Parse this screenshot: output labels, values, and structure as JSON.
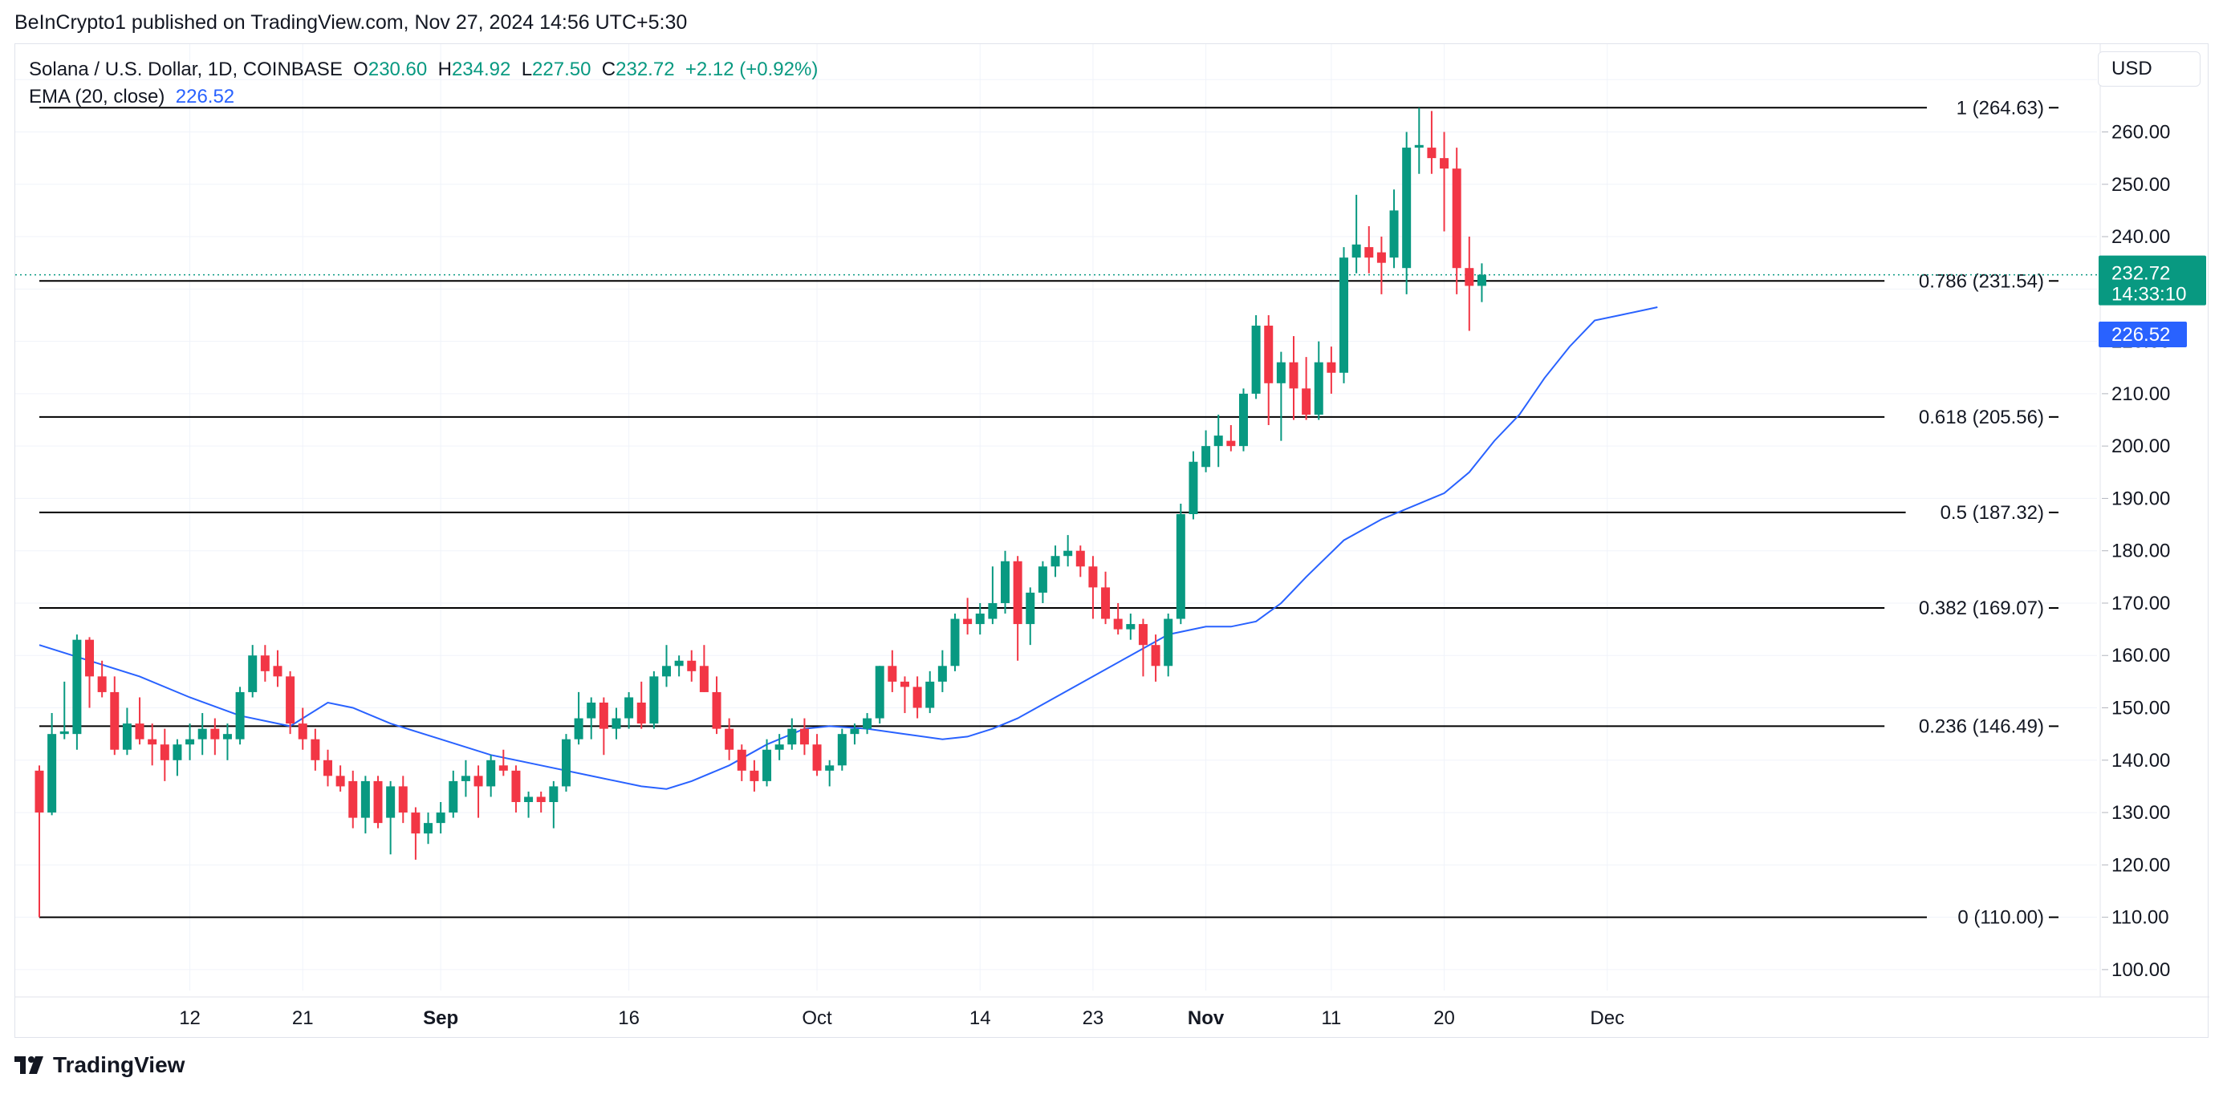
{
  "header": {
    "publisher": "BeInCrypto1 published on TradingView.com, Nov 27, 2024 14:56 UTC+5:30"
  },
  "legend": {
    "symbol": "Solana / U.S. Dollar, 1D, COINBASE",
    "o_label": "O",
    "o_value": "230.60",
    "h_label": "H",
    "h_value": "234.92",
    "l_label": "L",
    "l_value": "227.50",
    "c_label": "C",
    "c_value": "232.72",
    "change": "+2.12 (+0.92%)",
    "ema_label": "EMA (20, close)",
    "ema_value": "226.52"
  },
  "toolbar": {
    "currency": "USD"
  },
  "brand": {
    "name": "TradingView"
  },
  "colors": {
    "up": "#089981",
    "down": "#f23645",
    "ema": "#2962ff",
    "fib": "#000000",
    "grid": "#f0f3fa"
  },
  "price_badge": {
    "price": "232.72",
    "countdown": "14:33:10"
  },
  "ema_badge": {
    "value": "226.52"
  },
  "chart_data": {
    "type": "candlestick",
    "y_axis": {
      "range": [
        96,
        278
      ],
      "ticks": [
        100,
        110,
        120,
        130,
        140,
        150,
        160,
        170,
        180,
        190,
        200,
        210,
        220,
        230,
        240,
        250,
        260,
        270
      ],
      "tick_labels": [
        "100.00",
        "110.00",
        "120.00",
        "130.00",
        "140.00",
        "150.00",
        "160.00",
        "170.00",
        "180.00",
        "190.00",
        "200.00",
        "210.00",
        "220.00",
        "",
        "240.00",
        "250.00",
        "260.00",
        "270.00"
      ]
    },
    "x_axis": {
      "ticks": [
        {
          "day": 12,
          "label": "12",
          "bold": false
        },
        {
          "day": 21,
          "label": "21",
          "bold": false
        },
        {
          "day": 32,
          "label": "Sep",
          "bold": true
        },
        {
          "day": 47,
          "label": "16",
          "bold": false
        },
        {
          "day": 62,
          "label": "Oct",
          "bold": false
        },
        {
          "day": 75,
          "label": "14",
          "bold": false
        },
        {
          "day": 84,
          "label": "23",
          "bold": false
        },
        {
          "day": 93,
          "label": "Nov",
          "bold": true
        },
        {
          "day": 103,
          "label": "11",
          "bold": false
        },
        {
          "day": 112,
          "label": "20",
          "bold": false
        },
        {
          "day": 125,
          "label": "Dec",
          "bold": false
        }
      ]
    },
    "fib_levels": [
      {
        "ratio": "1",
        "price": 264.63,
        "label": "1 (264.63)"
      },
      {
        "ratio": "0.786",
        "price": 231.54,
        "label": "0.786 (231.54)"
      },
      {
        "ratio": "0.618",
        "price": 205.56,
        "label": "0.618 (205.56)"
      },
      {
        "ratio": "0.5",
        "price": 187.32,
        "label": "0.5 (187.32)"
      },
      {
        "ratio": "0.382",
        "price": 169.07,
        "label": "0.382 (169.07)"
      },
      {
        "ratio": "0.236",
        "price": 146.49,
        "label": "0.236 (146.49)"
      },
      {
        "ratio": "0",
        "price": 110.0,
        "label": "0 (110.00)"
      }
    ],
    "candles": [
      {
        "o": 138.0,
        "h": 139.0,
        "l": 110.0,
        "c": 130.0
      },
      {
        "o": 130.0,
        "h": 149.0,
        "l": 129.5,
        "c": 145.0
      },
      {
        "o": 145.0,
        "h": 155.0,
        "l": 144.0,
        "c": 145.5
      },
      {
        "o": 145.0,
        "h": 164.0,
        "l": 142.0,
        "c": 163.0
      },
      {
        "o": 163.0,
        "h": 163.5,
        "l": 150.0,
        "c": 156.0
      },
      {
        "o": 156.0,
        "h": 159.0,
        "l": 152.0,
        "c": 153.0
      },
      {
        "o": 153.0,
        "h": 156.0,
        "l": 141.0,
        "c": 142.0
      },
      {
        "o": 142.0,
        "h": 150.0,
        "l": 141.0,
        "c": 147.0
      },
      {
        "o": 147.0,
        "h": 152.0,
        "l": 143.0,
        "c": 144.0
      },
      {
        "o": 144.0,
        "h": 147.0,
        "l": 139.0,
        "c": 143.0
      },
      {
        "o": 143.0,
        "h": 146.0,
        "l": 136.0,
        "c": 140.0
      },
      {
        "o": 140.0,
        "h": 144.0,
        "l": 137.0,
        "c": 143.0
      },
      {
        "o": 143.0,
        "h": 147.0,
        "l": 140.0,
        "c": 144.0
      },
      {
        "o": 144.0,
        "h": 149.0,
        "l": 141.0,
        "c": 146.0
      },
      {
        "o": 146.0,
        "h": 148.0,
        "l": 141.0,
        "c": 144.0
      },
      {
        "o": 144.0,
        "h": 147.0,
        "l": 140.0,
        "c": 145.0
      },
      {
        "o": 144.0,
        "h": 154.0,
        "l": 143.0,
        "c": 153.0
      },
      {
        "o": 153.0,
        "h": 162.0,
        "l": 152.0,
        "c": 160.0
      },
      {
        "o": 160.0,
        "h": 162.0,
        "l": 155.0,
        "c": 157.0
      },
      {
        "o": 158.0,
        "h": 161.0,
        "l": 154.0,
        "c": 156.0
      },
      {
        "o": 156.0,
        "h": 157.0,
        "l": 145.0,
        "c": 147.0
      },
      {
        "o": 147.0,
        "h": 150.0,
        "l": 142.0,
        "c": 144.0
      },
      {
        "o": 144.0,
        "h": 146.0,
        "l": 138.0,
        "c": 140.0
      },
      {
        "o": 140.0,
        "h": 142.0,
        "l": 135.0,
        "c": 137.0
      },
      {
        "o": 137.0,
        "h": 139.0,
        "l": 134.0,
        "c": 135.0
      },
      {
        "o": 136.0,
        "h": 138.0,
        "l": 127.0,
        "c": 129.0
      },
      {
        "o": 129.0,
        "h": 137.0,
        "l": 126.0,
        "c": 136.0
      },
      {
        "o": 136.0,
        "h": 137.0,
        "l": 127.0,
        "c": 128.0
      },
      {
        "o": 129.0,
        "h": 136.0,
        "l": 122.0,
        "c": 135.0
      },
      {
        "o": 135.0,
        "h": 137.0,
        "l": 128.0,
        "c": 130.0
      },
      {
        "o": 130.0,
        "h": 131.0,
        "l": 121.0,
        "c": 126.0
      },
      {
        "o": 126.0,
        "h": 130.0,
        "l": 124.0,
        "c": 128.0
      },
      {
        "o": 128.0,
        "h": 132.0,
        "l": 126.0,
        "c": 130.0
      },
      {
        "o": 130.0,
        "h": 138.0,
        "l": 129.0,
        "c": 136.0
      },
      {
        "o": 136.0,
        "h": 140.0,
        "l": 133.0,
        "c": 137.0
      },
      {
        "o": 137.0,
        "h": 139.0,
        "l": 129.0,
        "c": 135.0
      },
      {
        "o": 135.0,
        "h": 141.0,
        "l": 133.0,
        "c": 140.0
      },
      {
        "o": 139.0,
        "h": 142.0,
        "l": 137.0,
        "c": 138.0
      },
      {
        "o": 138.0,
        "h": 139.0,
        "l": 130.0,
        "c": 132.0
      },
      {
        "o": 132.0,
        "h": 134.0,
        "l": 129.0,
        "c": 133.0
      },
      {
        "o": 133.0,
        "h": 134.0,
        "l": 130.0,
        "c": 132.0
      },
      {
        "o": 132.0,
        "h": 136.0,
        "l": 127.0,
        "c": 135.0
      },
      {
        "o": 135.0,
        "h": 145.0,
        "l": 134.0,
        "c": 144.0
      },
      {
        "o": 144.0,
        "h": 153.0,
        "l": 143.0,
        "c": 148.0
      },
      {
        "o": 148.0,
        "h": 152.0,
        "l": 144.0,
        "c": 151.0
      },
      {
        "o": 151.0,
        "h": 152.0,
        "l": 141.0,
        "c": 146.0
      },
      {
        "o": 146.0,
        "h": 150.0,
        "l": 144.0,
        "c": 148.0
      },
      {
        "o": 148.0,
        "h": 153.0,
        "l": 146.0,
        "c": 152.0
      },
      {
        "o": 151.0,
        "h": 155.0,
        "l": 146.0,
        "c": 147.0
      },
      {
        "o": 147.0,
        "h": 157.0,
        "l": 146.0,
        "c": 156.0
      },
      {
        "o": 156.0,
        "h": 162.0,
        "l": 154.0,
        "c": 158.0
      },
      {
        "o": 158.0,
        "h": 160.0,
        "l": 156.0,
        "c": 159.0
      },
      {
        "o": 159.0,
        "h": 161.0,
        "l": 155.0,
        "c": 157.0
      },
      {
        "o": 158.0,
        "h": 162.0,
        "l": 153.0,
        "c": 153.0
      },
      {
        "o": 153.0,
        "h": 156.0,
        "l": 145.0,
        "c": 146.0
      },
      {
        "o": 146.0,
        "h": 148.0,
        "l": 140.0,
        "c": 142.0
      },
      {
        "o": 142.0,
        "h": 143.0,
        "l": 136.0,
        "c": 138.0
      },
      {
        "o": 138.0,
        "h": 140.0,
        "l": 134.0,
        "c": 136.0
      },
      {
        "o": 136.0,
        "h": 144.0,
        "l": 135.0,
        "c": 142.0
      },
      {
        "o": 142.0,
        "h": 145.0,
        "l": 140.0,
        "c": 143.0
      },
      {
        "o": 143.0,
        "h": 148.0,
        "l": 142.0,
        "c": 146.0
      },
      {
        "o": 146.0,
        "h": 148.0,
        "l": 141.0,
        "c": 143.0
      },
      {
        "o": 143.0,
        "h": 145.0,
        "l": 137.0,
        "c": 138.0
      },
      {
        "o": 138.0,
        "h": 140.0,
        "l": 135.0,
        "c": 139.0
      },
      {
        "o": 139.0,
        "h": 146.0,
        "l": 138.0,
        "c": 145.0
      },
      {
        "o": 145.0,
        "h": 147.0,
        "l": 143.0,
        "c": 146.0
      },
      {
        "o": 146.0,
        "h": 149.0,
        "l": 145.0,
        "c": 148.0
      },
      {
        "o": 148.0,
        "h": 158.0,
        "l": 147.0,
        "c": 158.0
      },
      {
        "o": 158.0,
        "h": 161.0,
        "l": 153.0,
        "c": 155.0
      },
      {
        "o": 155.0,
        "h": 156.0,
        "l": 149.0,
        "c": 154.0
      },
      {
        "o": 154.0,
        "h": 156.0,
        "l": 148.0,
        "c": 150.0
      },
      {
        "o": 150.0,
        "h": 157.0,
        "l": 149.0,
        "c": 155.0
      },
      {
        "o": 155.0,
        "h": 161.0,
        "l": 153.0,
        "c": 158.0
      },
      {
        "o": 158.0,
        "h": 168.0,
        "l": 157.0,
        "c": 167.0
      },
      {
        "o": 167.0,
        "h": 171.0,
        "l": 164.0,
        "c": 166.0
      },
      {
        "o": 166.0,
        "h": 170.0,
        "l": 164.0,
        "c": 168.0
      },
      {
        "o": 167.0,
        "h": 177.0,
        "l": 166.0,
        "c": 170.0
      },
      {
        "o": 170.0,
        "h": 180.0,
        "l": 168.0,
        "c": 178.0
      },
      {
        "o": 178.0,
        "h": 179.0,
        "l": 159.0,
        "c": 166.0
      },
      {
        "o": 166.0,
        "h": 173.0,
        "l": 162.0,
        "c": 172.0
      },
      {
        "o": 172.0,
        "h": 178.0,
        "l": 170.0,
        "c": 177.0
      },
      {
        "o": 177.0,
        "h": 181.0,
        "l": 175.0,
        "c": 179.0
      },
      {
        "o": 179.0,
        "h": 183.0,
        "l": 177.0,
        "c": 180.0
      },
      {
        "o": 180.0,
        "h": 181.0,
        "l": 175.0,
        "c": 177.0
      },
      {
        "o": 177.0,
        "h": 179.0,
        "l": 167.0,
        "c": 173.0
      },
      {
        "o": 173.0,
        "h": 176.0,
        "l": 166.0,
        "c": 167.0
      },
      {
        "o": 167.0,
        "h": 170.0,
        "l": 164.0,
        "c": 165.0
      },
      {
        "o": 165.0,
        "h": 168.0,
        "l": 163.0,
        "c": 166.0
      },
      {
        "o": 166.0,
        "h": 167.0,
        "l": 156.0,
        "c": 162.0
      },
      {
        "o": 162.0,
        "h": 164.0,
        "l": 155.0,
        "c": 158.0
      },
      {
        "o": 158.0,
        "h": 168.0,
        "l": 156.0,
        "c": 167.0
      },
      {
        "o": 167.0,
        "h": 189.0,
        "l": 166.0,
        "c": 187.0
      },
      {
        "o": 187.0,
        "h": 199.0,
        "l": 186.0,
        "c": 197.0
      },
      {
        "o": 196.0,
        "h": 203.0,
        "l": 195.0,
        "c": 200.0
      },
      {
        "o": 200.0,
        "h": 206.0,
        "l": 196.0,
        "c": 202.0
      },
      {
        "o": 201.0,
        "h": 204.0,
        "l": 199.0,
        "c": 200.0
      },
      {
        "o": 200.0,
        "h": 211.0,
        "l": 199.0,
        "c": 210.0
      },
      {
        "o": 210.0,
        "h": 225.0,
        "l": 209.0,
        "c": 223.0
      },
      {
        "o": 223.0,
        "h": 225.0,
        "l": 204.0,
        "c": 212.0
      },
      {
        "o": 212.0,
        "h": 218.0,
        "l": 201.0,
        "c": 216.0
      },
      {
        "o": 216.0,
        "h": 221.0,
        "l": 205.0,
        "c": 211.0
      },
      {
        "o": 211.0,
        "h": 217.0,
        "l": 205.0,
        "c": 206.0
      },
      {
        "o": 206.0,
        "h": 220.0,
        "l": 205.0,
        "c": 216.0
      },
      {
        "o": 216.0,
        "h": 219.0,
        "l": 210.0,
        "c": 214.0
      },
      {
        "o": 214.0,
        "h": 238.0,
        "l": 212.0,
        "c": 236.0
      },
      {
        "o": 236.0,
        "h": 248.0,
        "l": 233.0,
        "c": 238.5
      },
      {
        "o": 238.0,
        "h": 242.0,
        "l": 233.0,
        "c": 236.0
      },
      {
        "o": 237.0,
        "h": 240.0,
        "l": 229.0,
        "c": 235.0
      },
      {
        "o": 236.0,
        "h": 249.0,
        "l": 234.0,
        "c": 245.0
      },
      {
        "o": 234.0,
        "h": 260.0,
        "l": 229.0,
        "c": 257.0
      },
      {
        "o": 257.0,
        "h": 264.6,
        "l": 252.0,
        "c": 257.5
      },
      {
        "o": 257.0,
        "h": 264.0,
        "l": 252.0,
        "c": 255.0
      },
      {
        "o": 255.0,
        "h": 260.0,
        "l": 241.0,
        "c": 253.0
      },
      {
        "o": 253.0,
        "h": 257.0,
        "l": 229.0,
        "c": 234.0
      },
      {
        "o": 234.0,
        "h": 240.0,
        "l": 222.0,
        "c": 230.6
      },
      {
        "o": 230.6,
        "h": 234.9,
        "l": 227.5,
        "c": 232.72
      }
    ],
    "ema20": [
      {
        "d": 0,
        "v": 162.0
      },
      {
        "d": 4,
        "v": 159.0
      },
      {
        "d": 8,
        "v": 156.0
      },
      {
        "d": 12,
        "v": 152.0
      },
      {
        "d": 16,
        "v": 148.5
      },
      {
        "d": 19,
        "v": 147.0
      },
      {
        "d": 20,
        "v": 146.5
      },
      {
        "d": 23,
        "v": 151.0
      },
      {
        "d": 25,
        "v": 150.0
      },
      {
        "d": 28,
        "v": 147.0
      },
      {
        "d": 32,
        "v": 144.0
      },
      {
        "d": 36,
        "v": 141.0
      },
      {
        "d": 40,
        "v": 139.0
      },
      {
        "d": 44,
        "v": 137.0
      },
      {
        "d": 48,
        "v": 135.0
      },
      {
        "d": 50,
        "v": 134.5
      },
      {
        "d": 52,
        "v": 136.0
      },
      {
        "d": 55,
        "v": 139.0
      },
      {
        "d": 58,
        "v": 143.0
      },
      {
        "d": 61,
        "v": 146.0
      },
      {
        "d": 63,
        "v": 146.5
      },
      {
        "d": 66,
        "v": 146.0
      },
      {
        "d": 69,
        "v": 145.0
      },
      {
        "d": 72,
        "v": 144.0
      },
      {
        "d": 74,
        "v": 144.5
      },
      {
        "d": 76,
        "v": 146.0
      },
      {
        "d": 78,
        "v": 148.0
      },
      {
        "d": 81,
        "v": 152.0
      },
      {
        "d": 84,
        "v": 156.0
      },
      {
        "d": 87,
        "v": 160.0
      },
      {
        "d": 90,
        "v": 164.0
      },
      {
        "d": 93,
        "v": 165.5
      },
      {
        "d": 95,
        "v": 165.5
      },
      {
        "d": 97,
        "v": 166.5
      },
      {
        "d": 99,
        "v": 170.0
      },
      {
        "d": 101,
        "v": 175.0
      },
      {
        "d": 104,
        "v": 182.0
      },
      {
        "d": 107,
        "v": 186.0
      },
      {
        "d": 110,
        "v": 189.0
      },
      {
        "d": 112,
        "v": 191.0
      },
      {
        "d": 114,
        "v": 195.0
      },
      {
        "d": 116,
        "v": 201.0
      },
      {
        "d": 118,
        "v": 206.0
      },
      {
        "d": 120,
        "v": 213.0
      },
      {
        "d": 122,
        "v": 219.0
      },
      {
        "d": 124,
        "v": 224.0
      },
      {
        "d": 126,
        "v": 225.0
      },
      {
        "d": 128,
        "v": 226.0
      },
      {
        "d": 129,
        "v": 226.52
      }
    ]
  }
}
